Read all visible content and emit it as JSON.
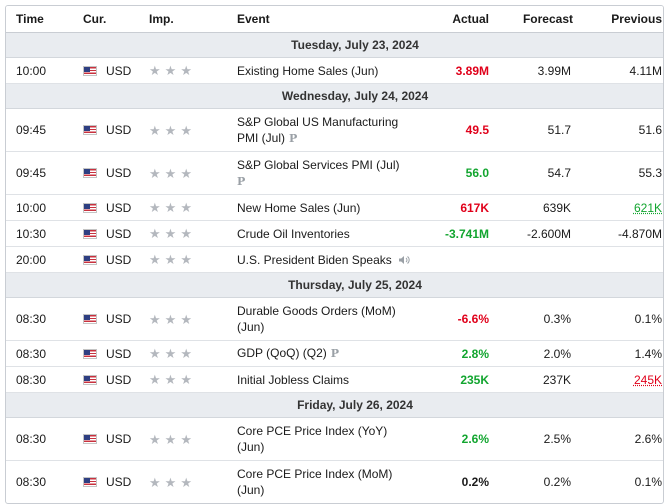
{
  "headers": {
    "time": "Time",
    "cur": "Cur.",
    "imp": "Imp.",
    "event": "Event",
    "actual": "Actual",
    "forecast": "Forecast",
    "previous": "Previous"
  },
  "days": [
    {
      "label": "Tuesday, July 23, 2024"
    },
    {
      "label": "Wednesday, July 24, 2024"
    },
    {
      "label": "Thursday, July 25, 2024"
    },
    {
      "label": "Friday, July 26, 2024"
    }
  ],
  "events": [
    {
      "time": "10:00",
      "cur": "USD",
      "event": "Existing Home Sales (Jun)",
      "actual": "3.89M",
      "actual_color": "#e0001a",
      "forecast": "3.99M",
      "previous": "4.11M"
    },
    {
      "time": "09:45",
      "cur": "USD",
      "event": "S&P Global US Manufacturing PMI (Jul)",
      "actual": "49.5",
      "actual_color": "#e0001a",
      "forecast": "51.7",
      "previous": "51.6",
      "preliminary": "P"
    },
    {
      "time": "09:45",
      "cur": "USD",
      "event": "S&P Global Services PMI (Jul)",
      "actual": "56.0",
      "actual_color": "#12a52f",
      "forecast": "54.7",
      "previous": "55.3",
      "preliminary": "P"
    },
    {
      "time": "10:00",
      "cur": "USD",
      "event": "New Home Sales (Jun)",
      "actual": "617K",
      "actual_color": "#e0001a",
      "forecast": "639K",
      "previous": "621K",
      "previous_color": "#12a52f"
    },
    {
      "time": "10:30",
      "cur": "USD",
      "event": "Crude Oil Inventories",
      "actual": "-3.741M",
      "actual_color": "#12a52f",
      "forecast": "-2.600M",
      "previous": "-4.870M"
    },
    {
      "time": "20:00",
      "cur": "USD",
      "event": "U.S. President Biden Speaks",
      "actual": "",
      "forecast": "",
      "previous": "",
      "icon": "speaker-icon"
    },
    {
      "time": "08:30",
      "cur": "USD",
      "event": "Durable Goods Orders (MoM) (Jun)",
      "actual": "-6.6%",
      "actual_color": "#e0001a",
      "forecast": "0.3%",
      "previous": "0.1%"
    },
    {
      "time": "08:30",
      "cur": "USD",
      "event": "GDP (QoQ) (Q2)",
      "actual": "2.8%",
      "actual_color": "#12a52f",
      "forecast": "2.0%",
      "previous": "1.4%",
      "preliminary": "P"
    },
    {
      "time": "08:30",
      "cur": "USD",
      "event": "Initial Jobless Claims",
      "actual": "235K",
      "actual_color": "#12a52f",
      "forecast": "237K",
      "previous": "245K",
      "previous_color": "#e0001a"
    },
    {
      "time": "08:30",
      "cur": "USD",
      "event": "Core PCE Price Index (YoY) (Jun)",
      "actual": "2.6%",
      "actual_color": "#12a52f",
      "forecast": "2.5%",
      "previous": "2.6%"
    },
    {
      "time": "08:30",
      "cur": "USD",
      "event": "Core PCE Price Index (MoM) (Jun)",
      "actual": "0.2%",
      "actual_color": "#1a1a1a",
      "forecast": "0.2%",
      "previous": "0.1%"
    }
  ],
  "importance_stars": 3,
  "colors": {
    "accent_red": "#e0001a",
    "accent_green": "#12a52f",
    "day_band": "#e9ecf0"
  }
}
